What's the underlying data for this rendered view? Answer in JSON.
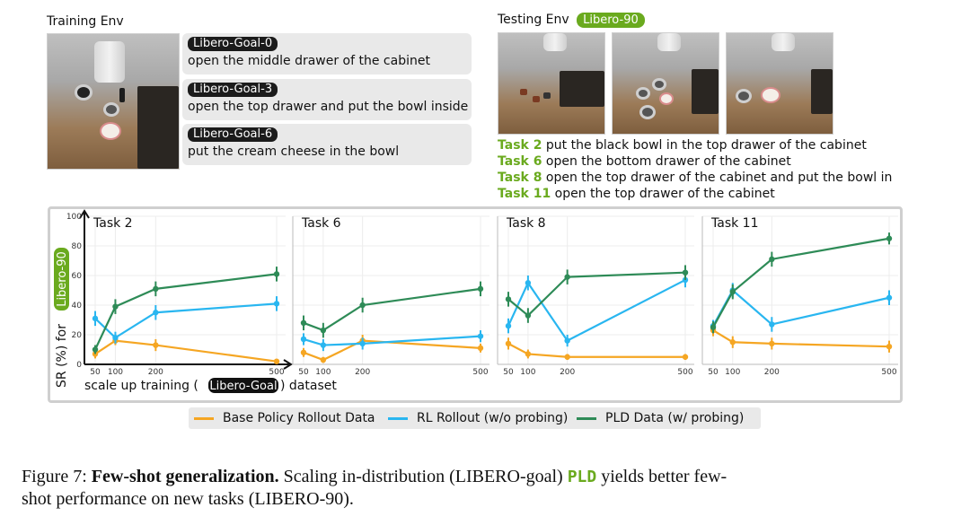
{
  "training_env": {
    "title": "Training Env",
    "tasks": [
      {
        "tag": "Libero-Goal-0",
        "text": "open the middle drawer of the cabinet"
      },
      {
        "tag": "Libero-Goal-3",
        "text": "open the top drawer and put the bowl inside"
      },
      {
        "tag": "Libero-Goal-6",
        "text": "put the cream cheese in the bowl"
      }
    ]
  },
  "testing_env": {
    "title": "Testing Env",
    "badge": "Libero-90",
    "tasks": [
      {
        "id": "Task 2",
        "text": "put the black bowl in the top drawer of the cabinet"
      },
      {
        "id": "Task 6",
        "text": "open the bottom drawer of the cabinet"
      },
      {
        "id": "Task 8",
        "text": "open the top drawer of the cabinet and put the bowl in"
      },
      {
        "id": "Task 11",
        "text": "open the top drawer of the cabinet"
      }
    ]
  },
  "axes": {
    "ylabel_prefix": "SR (%)  for",
    "ylabel_badge": "Libero-90",
    "xlabel_prefix": "scale up training (",
    "xlabel_badge": "Libero-Goal",
    "xlabel_suffix": ") dataset"
  },
  "colors": {
    "base": "#f5a623",
    "rl": "#29b6f0",
    "pld": "#2e8b57",
    "green_accent": "#6aaa1e"
  },
  "legend": [
    {
      "key": "base",
      "label": "Base Policy Rollout Data"
    },
    {
      "key": "rl",
      "label": "RL Rollout (w/o probing)"
    },
    {
      "key": "pld",
      "label": "PLD Data (w/ probing)"
    }
  ],
  "chart_data": [
    {
      "type": "line",
      "title": "Task 2",
      "x": [
        50,
        100,
        200,
        500
      ],
      "ylim": [
        0,
        100
      ],
      "yticks": [
        0,
        20,
        40,
        60,
        80,
        100
      ],
      "series": [
        {
          "key": "base",
          "name": "Base Policy Rollout Data",
          "values": [
            7,
            16,
            13,
            2
          ],
          "err": [
            3,
            3,
            4,
            1
          ]
        },
        {
          "key": "rl",
          "name": "RL Rollout (w/o probing)",
          "values": [
            31,
            18,
            35,
            41
          ],
          "err": [
            5,
            4,
            5,
            5
          ]
        },
        {
          "key": "pld",
          "name": "PLD Data (w/ probing)",
          "values": [
            10,
            39,
            51,
            61
          ],
          "err": [
            3,
            5,
            5,
            5
          ]
        }
      ]
    },
    {
      "type": "line",
      "title": "Task 6",
      "x": [
        50,
        100,
        200,
        500
      ],
      "ylim": [
        0,
        100
      ],
      "yticks": [
        0,
        20,
        40,
        60,
        80,
        100
      ],
      "series": [
        {
          "key": "base",
          "name": "Base Policy Rollout Data",
          "values": [
            8,
            3,
            16,
            11
          ],
          "err": [
            3,
            2,
            4,
            3
          ]
        },
        {
          "key": "rl",
          "name": "RL Rollout (w/o probing)",
          "values": [
            17,
            13,
            14,
            19
          ],
          "err": [
            4,
            4,
            4,
            4
          ]
        },
        {
          "key": "pld",
          "name": "PLD Data (w/ probing)",
          "values": [
            28,
            23,
            40,
            51
          ],
          "err": [
            5,
            5,
            5,
            5
          ]
        }
      ]
    },
    {
      "type": "line",
      "title": "Task 8",
      "x": [
        50,
        100,
        200,
        500
      ],
      "ylim": [
        0,
        100
      ],
      "yticks": [
        0,
        20,
        40,
        60,
        80,
        100
      ],
      "series": [
        {
          "key": "base",
          "name": "Base Policy Rollout Data",
          "values": [
            14,
            7,
            5,
            5
          ],
          "err": [
            4,
            3,
            2,
            2
          ]
        },
        {
          "key": "rl",
          "name": "RL Rollout (w/o probing)",
          "values": [
            26,
            55,
            16,
            57
          ],
          "err": [
            5,
            5,
            4,
            5
          ]
        },
        {
          "key": "pld",
          "name": "PLD Data (w/ probing)",
          "values": [
            44,
            33,
            59,
            62
          ],
          "err": [
            5,
            5,
            5,
            5
          ]
        }
      ]
    },
    {
      "type": "line",
      "title": "Task 11",
      "x": [
        50,
        100,
        200,
        500
      ],
      "ylim": [
        0,
        100
      ],
      "yticks": [
        0,
        20,
        40,
        60,
        80,
        100
      ],
      "series": [
        {
          "key": "base",
          "name": "Base Policy Rollout Data",
          "values": [
            23,
            15,
            14,
            12
          ],
          "err": [
            4,
            4,
            4,
            4
          ]
        },
        {
          "key": "rl",
          "name": "RL Rollout (w/o probing)",
          "values": [
            26,
            50,
            27,
            45
          ],
          "err": [
            4,
            5,
            5,
            5
          ]
        },
        {
          "key": "pld",
          "name": "PLD Data (w/ probing)",
          "values": [
            25,
            49,
            71,
            85
          ],
          "err": [
            4,
            5,
            5,
            4
          ]
        }
      ]
    }
  ],
  "caption": {
    "prefix": "Figure 7:",
    "bold": "Few-shot generalization.",
    "line1_a": "Scaling in-distribution (LIBERO-goal)",
    "code": "PLD",
    "line1_b": "yields better few-",
    "line2": "shot performance on new tasks (LIBERO-90)."
  }
}
